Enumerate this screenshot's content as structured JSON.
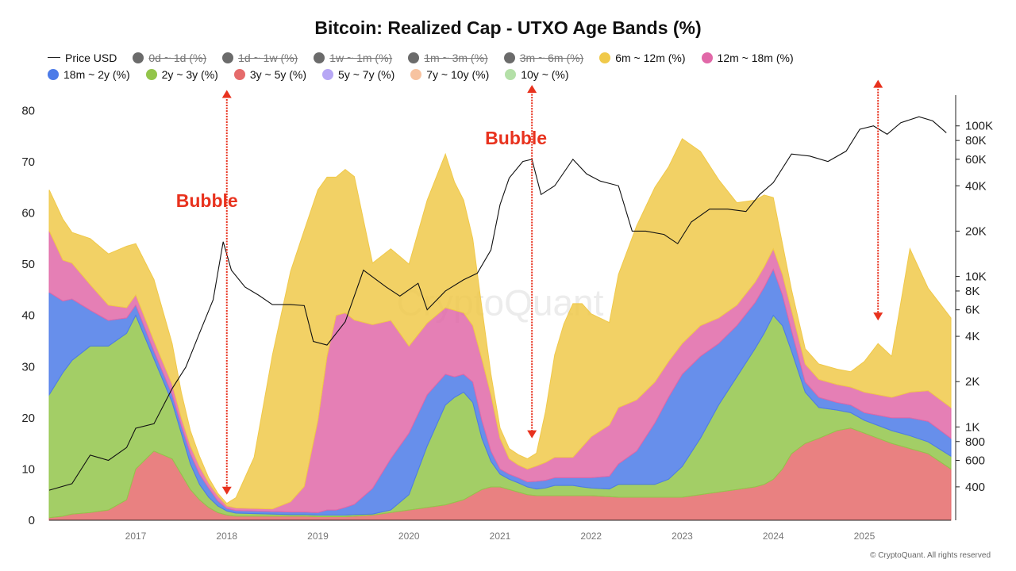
{
  "chart_title": "Bitcoin: Realized Cap - UTXO Age Bands (%)",
  "copyright": "© CryptoQuant. All rights reserved",
  "watermark": "CryptoQuant",
  "legend": [
    {
      "label": "Price USD",
      "kind": "line",
      "color": "#222222",
      "hidden": false
    },
    {
      "label": "0d ~ 1d (%)",
      "kind": "dot",
      "color": "#6b6b6b",
      "hidden": true
    },
    {
      "label": "1d ~ 1w (%)",
      "kind": "dot",
      "color": "#6b6b6b",
      "hidden": true
    },
    {
      "label": "1w ~ 1m (%)",
      "kind": "dot",
      "color": "#6b6b6b",
      "hidden": true
    },
    {
      "label": "1m ~ 3m (%)",
      "kind": "dot",
      "color": "#6b6b6b",
      "hidden": true
    },
    {
      "label": "3m ~ 6m (%)",
      "kind": "dot",
      "color": "#6b6b6b",
      "hidden": true
    },
    {
      "label": "6m ~ 12m (%)",
      "kind": "dot",
      "color": "#f0c94a",
      "hidden": false
    },
    {
      "label": "12m ~ 18m (%)",
      "kind": "dot",
      "color": "#e168a8",
      "hidden": false
    },
    {
      "label": "18m ~ 2y (%)",
      "kind": "dot",
      "color": "#4c7be8",
      "hidden": false
    },
    {
      "label": "2y ~ 3y (%)",
      "kind": "dot",
      "color": "#93c54b",
      "hidden": false
    },
    {
      "label": "3y ~ 5y (%)",
      "kind": "dot",
      "color": "#e56b6b",
      "hidden": false
    },
    {
      "label": "5y ~ 7y (%)",
      "kind": "dot",
      "color": "#b7a7f5",
      "hidden": false
    },
    {
      "label": "7y ~ 10y (%)",
      "kind": "dot",
      "color": "#f7c3a0",
      "hidden": false
    },
    {
      "label": "10y ~ (%)",
      "kind": "dot",
      "color": "#b4e0a8",
      "hidden": false
    }
  ],
  "annotations": [
    {
      "text": "Bubble",
      "date": 2018.0,
      "arrow_top": 84,
      "arrow_bottom": 5
    },
    {
      "text": "Bubble",
      "date": 2021.35,
      "arrow_top": 85,
      "arrow_bottom": 16
    },
    {
      "text": "",
      "date": 2025.15,
      "arrow_top": 86,
      "arrow_bottom": 39
    }
  ],
  "chart_data": {
    "type": "area",
    "stacked": true,
    "title": "Bitcoin: Realized Cap - UTXO Age Bands (%)",
    "x_ticks": [
      "2017",
      "2018",
      "2019",
      "2020",
      "2021",
      "2022",
      "2023",
      "2024",
      "2025"
    ],
    "x_range": [
      2016.05,
      2025.95
    ],
    "y_left_ticks": [
      "0",
      "10",
      "20",
      "30",
      "40",
      "50",
      "60",
      "70",
      "80"
    ],
    "y_left_range": [
      0,
      83
    ],
    "y_right_ticks": [
      "400",
      "600",
      "800",
      "1K",
      "2K",
      "4K",
      "6K",
      "8K",
      "10K",
      "20K",
      "40K",
      "60K",
      "80K",
      "100K"
    ],
    "y_right_range": [
      240,
      160000
    ],
    "y_right_scale": "log",
    "grid": false,
    "legend_position": "top",
    "x": [
      2016.05,
      2016.2,
      2016.3,
      2016.5,
      2016.7,
      2016.9,
      2017.0,
      2017.2,
      2017.4,
      2017.5,
      2017.6,
      2017.7,
      2017.8,
      2017.9,
      2018.0,
      2018.1,
      2018.3,
      2018.5,
      2018.7,
      2018.85,
      2019.0,
      2019.1,
      2019.2,
      2019.3,
      2019.4,
      2019.6,
      2019.8,
      2020.0,
      2020.2,
      2020.4,
      2020.5,
      2020.6,
      2020.7,
      2020.8,
      2020.9,
      2021.0,
      2021.1,
      2021.2,
      2021.3,
      2021.4,
      2021.5,
      2021.6,
      2021.7,
      2021.8,
      2021.9,
      2022.0,
      2022.2,
      2022.3,
      2022.5,
      2022.7,
      2022.85,
      2023.0,
      2023.2,
      2023.4,
      2023.6,
      2023.8,
      2023.9,
      2024.0,
      2024.1,
      2024.2,
      2024.35,
      2024.5,
      2024.7,
      2024.85,
      2025.0,
      2025.15,
      2025.3,
      2025.5,
      2025.7,
      2025.95
    ],
    "series": [
      {
        "name": "3y ~ 5y (%)",
        "color": "#e56b6b",
        "values": [
          0.5,
          0.8,
          1.2,
          1.5,
          2,
          4,
          10,
          13.5,
          12,
          9,
          6,
          4,
          2.5,
          1.5,
          1,
          0.8,
          0.8,
          0.8,
          0.8,
          0.8,
          0.7,
          0.7,
          0.7,
          0.7,
          0.8,
          1,
          1.5,
          2,
          2.5,
          3,
          3.5,
          4,
          5,
          6,
          6.5,
          6.5,
          6,
          5.5,
          5,
          4.8,
          4.8,
          4.8,
          4.8,
          4.8,
          4.8,
          4.8,
          4.6,
          4.5,
          4.5,
          4.5,
          4.5,
          4.5,
          5,
          5.5,
          6,
          6.5,
          7,
          8,
          10,
          13,
          15,
          16,
          17.5,
          18,
          17,
          16,
          15,
          14,
          13,
          10
        ]
      },
      {
        "name": "2y ~ 3y (%)",
        "color": "#93c54b",
        "values": [
          24,
          28,
          30,
          32.5,
          32,
          32.5,
          30,
          18,
          11,
          8,
          5,
          3,
          2,
          1.3,
          0.8,
          0.6,
          0.5,
          0.4,
          0.3,
          0.3,
          0.3,
          0.3,
          0.3,
          0.3,
          0.3,
          0.2,
          0.5,
          3,
          12,
          19.5,
          20.5,
          21,
          18,
          10,
          5,
          2.5,
          2,
          1.8,
          1.5,
          1.3,
          1.5,
          2,
          2,
          2,
          1.7,
          1.5,
          1.5,
          2.5,
          2.5,
          2.5,
          3.5,
          6,
          11,
          17,
          22,
          27,
          29.5,
          32,
          28,
          20,
          10,
          6,
          4,
          3,
          2.5,
          2.5,
          2.5,
          2.5,
          2.3,
          2.5
        ]
      },
      {
        "name": "18m ~ 2y (%)",
        "color": "#4c7be8",
        "values": [
          20,
          14,
          12,
          7,
          5,
          3,
          2,
          1.5,
          1.5,
          1.5,
          2,
          2,
          1.8,
          1,
          0.5,
          0.5,
          0.5,
          0.5,
          0.5,
          0.5,
          0.5,
          1,
          1,
          1.5,
          2,
          5,
          10,
          12,
          10,
          6,
          4,
          3.5,
          4,
          3.5,
          2,
          1,
          1,
          1,
          1,
          1.5,
          1.5,
          1.5,
          1.5,
          1.5,
          1.8,
          2,
          2.5,
          4,
          6.5,
          12,
          16,
          18,
          16,
          12,
          10,
          9,
          9,
          9,
          6,
          4,
          2,
          2,
          1.5,
          1.5,
          1.5,
          2,
          2.5,
          3.5,
          4,
          3.5
        ]
      },
      {
        "name": "12m ~ 18m (%)",
        "color": "#e168a8",
        "values": [
          12,
          8,
          7,
          5,
          3,
          2,
          2,
          2,
          2,
          1.5,
          1.5,
          1.5,
          1,
          1,
          0.5,
          0.5,
          0.5,
          0.5,
          2,
          5,
          18,
          30,
          38,
          38,
          36,
          32,
          27,
          17,
          14,
          13,
          13,
          12,
          11,
          12,
          11,
          6,
          3,
          2.5,
          2.5,
          3,
          3.5,
          4,
          4,
          4,
          6,
          8,
          10,
          11,
          10,
          8,
          7,
          6,
          6,
          5,
          4,
          4,
          4,
          4,
          4,
          4,
          3.5,
          3.5,
          3.5,
          3.5,
          4,
          4,
          4,
          5,
          6,
          6
        ]
      },
      {
        "name": "6m ~ 12m (%)",
        "color": "#f0c94a",
        "values": [
          8,
          8,
          6,
          9,
          10,
          12,
          10,
          12,
          8,
          5,
          3,
          2,
          1,
          0.5,
          0.5,
          2,
          10,
          30,
          45,
          50,
          45,
          35,
          27,
          28,
          28,
          12,
          14,
          16,
          24,
          30,
          25,
          22,
          17,
          10,
          4,
          2,
          2,
          2,
          2,
          2.5,
          10,
          20,
          26,
          30,
          28,
          24,
          20,
          26,
          34,
          38,
          38,
          40,
          34,
          27,
          20,
          16,
          14,
          10,
          6,
          4,
          3,
          3,
          3,
          3,
          6,
          10,
          8,
          28,
          20,
          17.5
        ]
      }
    ],
    "price_usd": {
      "x": [
        2016.05,
        2016.3,
        2016.5,
        2016.7,
        2016.9,
        2017.0,
        2017.2,
        2017.4,
        2017.55,
        2017.7,
        2017.85,
        2017.96,
        2018.05,
        2018.2,
        2018.35,
        2018.5,
        2018.7,
        2018.85,
        2018.95,
        2019.1,
        2019.3,
        2019.5,
        2019.75,
        2019.9,
        2020.1,
        2020.2,
        2020.4,
        2020.6,
        2020.75,
        2020.9,
        2021.0,
        2021.1,
        2021.25,
        2021.35,
        2021.45,
        2021.6,
        2021.8,
        2021.95,
        2022.1,
        2022.3,
        2022.45,
        2022.6,
        2022.8,
        2022.95,
        2023.1,
        2023.3,
        2023.5,
        2023.7,
        2023.85,
        2024.0,
        2024.2,
        2024.4,
        2024.6,
        2024.8,
        2024.95,
        2025.1,
        2025.25,
        2025.4,
        2025.6,
        2025.75,
        2025.9
      ],
      "y": [
        380,
        420,
        650,
        600,
        730,
        980,
        1050,
        1800,
        2500,
        4200,
        7000,
        17000,
        11000,
        8500,
        7500,
        6500,
        6500,
        6400,
        3700,
        3500,
        5000,
        11000,
        8500,
        7400,
        9000,
        6000,
        8000,
        9500,
        10500,
        15000,
        30000,
        45000,
        58000,
        60000,
        35000,
        40000,
        60000,
        48000,
        43000,
        40000,
        20000,
        20000,
        19000,
        16500,
        23000,
        28000,
        28000,
        27000,
        35000,
        42000,
        65000,
        63000,
        58000,
        68000,
        95000,
        100000,
        88000,
        105000,
        115000,
        108000,
        90000
      ]
    }
  }
}
